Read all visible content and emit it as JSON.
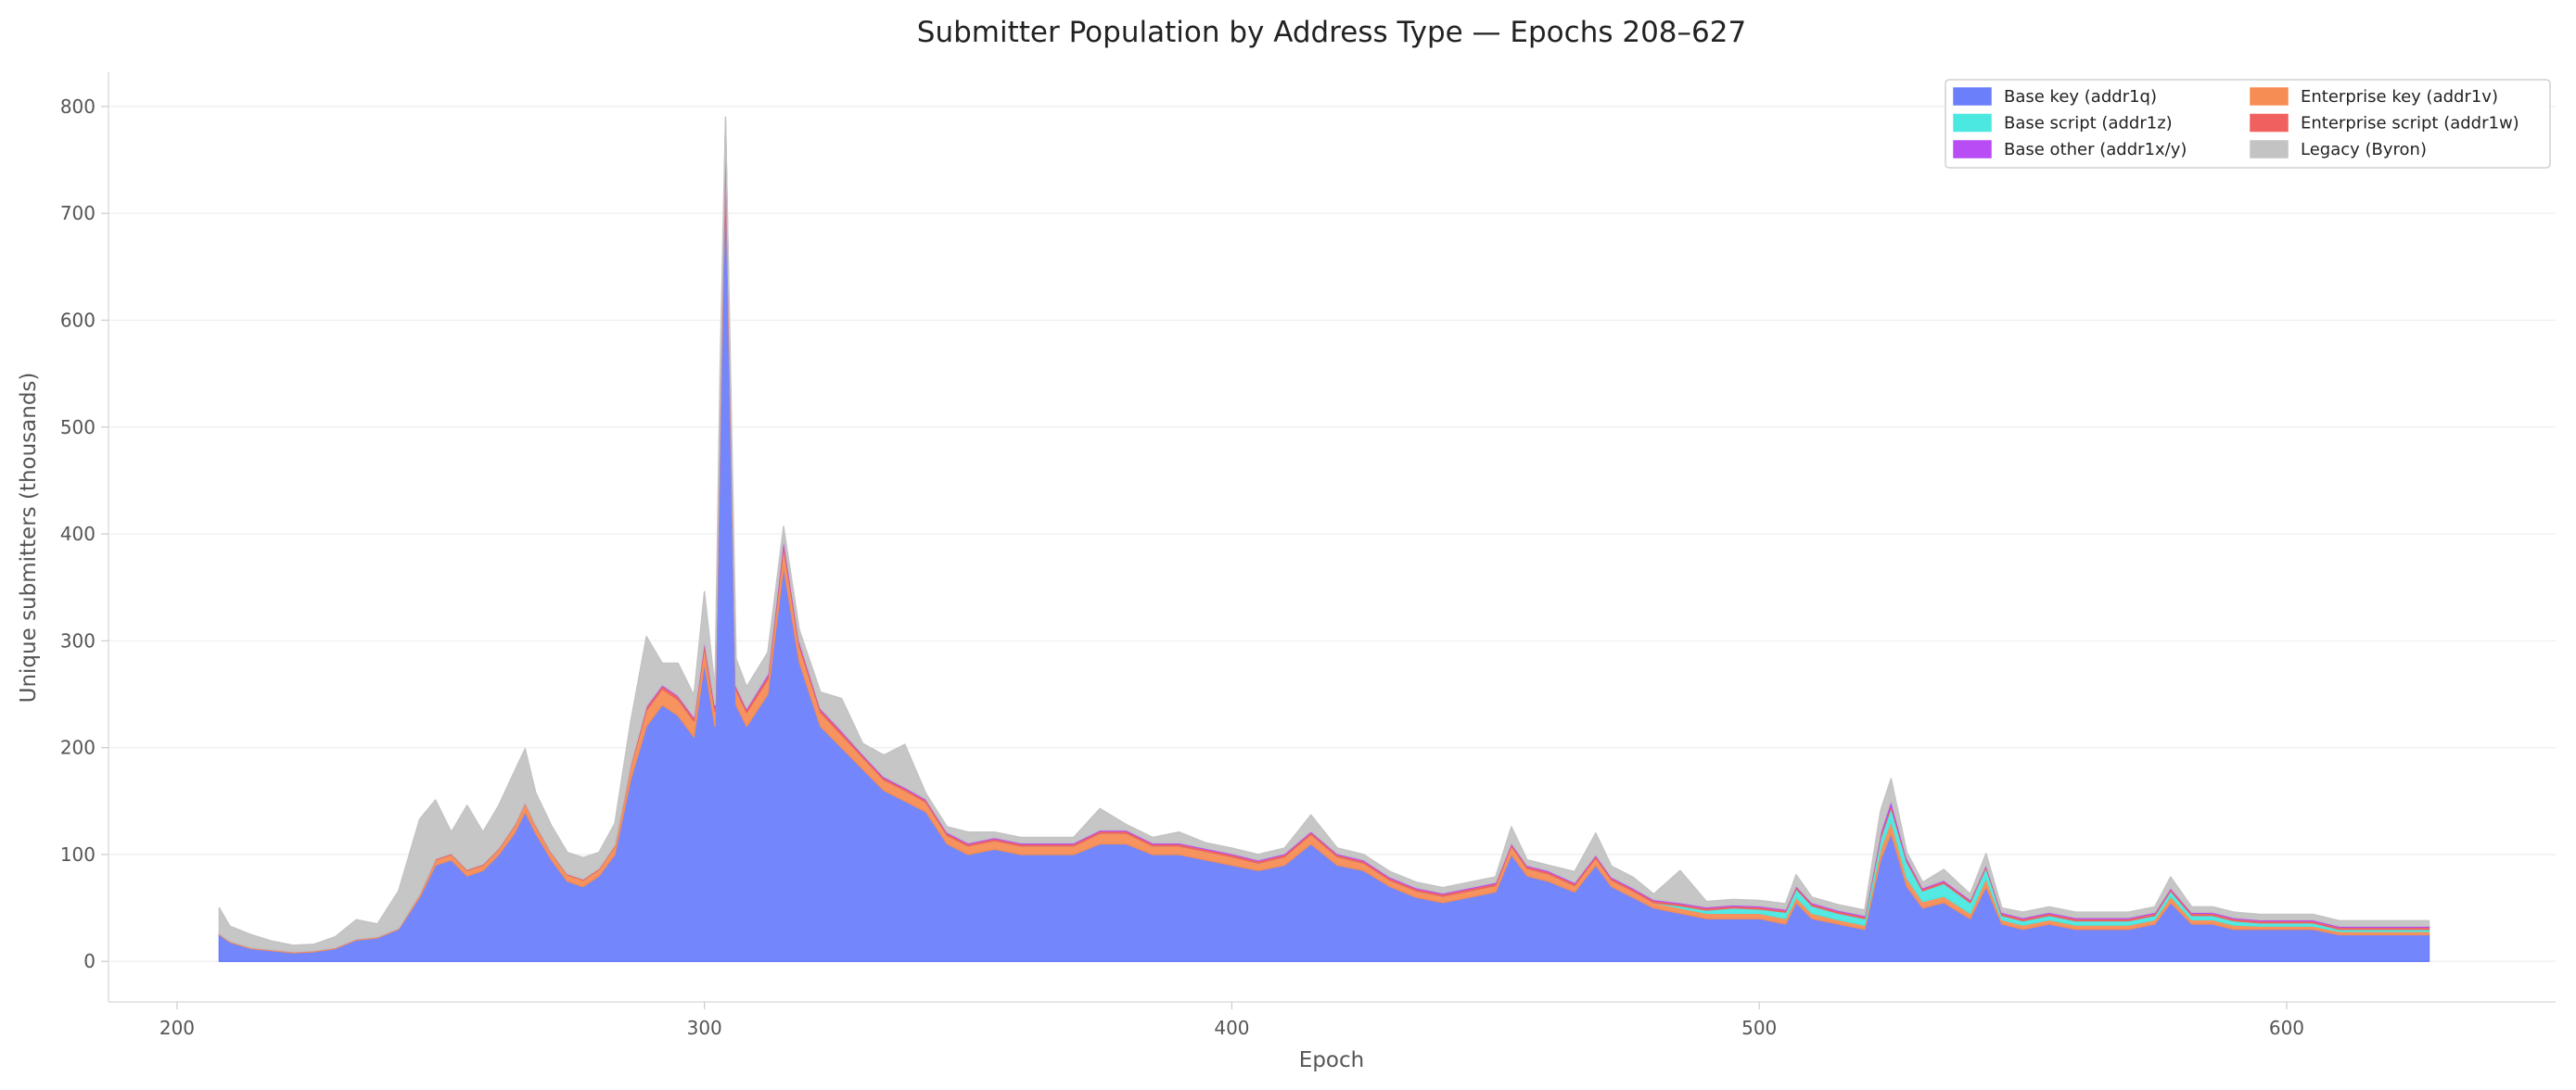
{
  "chart_data": {
    "type": "area",
    "stacked": true,
    "title": "Submitter Population by Address Type — Epochs 208–627",
    "xlabel": "Epoch",
    "ylabel": "Unique submitters (thousands)",
    "xlim": [
      187,
      651
    ],
    "ylim": [
      -38,
      832
    ],
    "xticks": [
      200,
      300,
      400,
      500,
      600
    ],
    "yticks": [
      0,
      100,
      200,
      300,
      400,
      500,
      600,
      700,
      800
    ],
    "grid": "horizontal",
    "legend_position": "top-right",
    "legend_columns": 2,
    "x": [
      208,
      210,
      214,
      218,
      222,
      226,
      230,
      234,
      238,
      242,
      246,
      249,
      252,
      255,
      258,
      261,
      264,
      266,
      268,
      271,
      274,
      277,
      280,
      283,
      286,
      289,
      292,
      295,
      298,
      300,
      302,
      303,
      304,
      306,
      308,
      312,
      315,
      318,
      322,
      326,
      330,
      334,
      338,
      342,
      346,
      350,
      355,
      360,
      365,
      370,
      375,
      380,
      385,
      390,
      395,
      400,
      405,
      410,
      415,
      420,
      425,
      430,
      435,
      440,
      445,
      450,
      453,
      456,
      460,
      465,
      469,
      472,
      476,
      480,
      485,
      490,
      495,
      500,
      505,
      507,
      510,
      515,
      520,
      523,
      525,
      528,
      531,
      535,
      540,
      543,
      546,
      550,
      555,
      560,
      565,
      570,
      575,
      578,
      582,
      586,
      590,
      595,
      600,
      605,
      610,
      615,
      620,
      624,
      627
    ],
    "series": [
      {
        "name": "Base key (addr1q)",
        "color": "#6b7ffb",
        "values": [
          25,
          18,
          12,
          10,
          8,
          9,
          12,
          20,
          22,
          30,
          60,
          90,
          95,
          80,
          85,
          100,
          120,
          140,
          120,
          95,
          75,
          70,
          80,
          100,
          170,
          220,
          240,
          230,
          210,
          280,
          220,
          500,
          750,
          240,
          220,
          250,
          370,
          280,
          220,
          200,
          180,
          160,
          150,
          140,
          110,
          100,
          105,
          100,
          100,
          100,
          110,
          110,
          100,
          100,
          95,
          90,
          85,
          90,
          110,
          90,
          85,
          70,
          60,
          55,
          60,
          65,
          100,
          80,
          75,
          65,
          90,
          70,
          60,
          50,
          45,
          40,
          40,
          40,
          35,
          55,
          40,
          35,
          30,
          95,
          120,
          70,
          50,
          55,
          40,
          70,
          35,
          30,
          35,
          30,
          30,
          30,
          35,
          55,
          35,
          35,
          30,
          30,
          30,
          30,
          25,
          25,
          25,
          25,
          25
        ]
      },
      {
        "name": "Enterprise key (addr1v)",
        "color": "#f58d55",
        "values": [
          1,
          1,
          1,
          1,
          1,
          1,
          1,
          1,
          1,
          1,
          3,
          5,
          5,
          5,
          5,
          5,
          7,
          8,
          7,
          6,
          6,
          6,
          6,
          8,
          12,
          15,
          15,
          15,
          15,
          15,
          14,
          20,
          20,
          14,
          13,
          14,
          18,
          15,
          13,
          12,
          11,
          10,
          10,
          9,
          8,
          8,
          8,
          8,
          8,
          8,
          10,
          10,
          8,
          8,
          8,
          8,
          7,
          8,
          9,
          8,
          7,
          6,
          6,
          6,
          6,
          6,
          8,
          7,
          7,
          6,
          7,
          6,
          6,
          5,
          5,
          5,
          5,
          5,
          5,
          5,
          5,
          4,
          4,
          10,
          12,
          8,
          6,
          6,
          5,
          8,
          4,
          4,
          4,
          4,
          4,
          4,
          4,
          6,
          4,
          4,
          4,
          3,
          3,
          3,
          3,
          3,
          3,
          3,
          3
        ]
      },
      {
        "name": "Base script (addr1z)",
        "color": "#4be8e0",
        "values": [
          0,
          0,
          0,
          0,
          0,
          0,
          0,
          0,
          0,
          0,
          0,
          0,
          0,
          0,
          0,
          0,
          0,
          0,
          0,
          0,
          0,
          0,
          0,
          0,
          0,
          0,
          0,
          0,
          0,
          0,
          0,
          0,
          0,
          0,
          0,
          0,
          0,
          0,
          0,
          0,
          0,
          0,
          0,
          0,
          0,
          0,
          0,
          0,
          0,
          0,
          0,
          0,
          0,
          0,
          0,
          0,
          0,
          0,
          0,
          0,
          0,
          0,
          0,
          0,
          0,
          0,
          0,
          0,
          0,
          0,
          0,
          0,
          0,
          0,
          2,
          3,
          5,
          4,
          6,
          8,
          7,
          6,
          6,
          10,
          12,
          15,
          10,
          12,
          10,
          10,
          4,
          4,
          4,
          4,
          4,
          4,
          4,
          5,
          4,
          4,
          4,
          3,
          3,
          3,
          2,
          2,
          2,
          2,
          2
        ]
      },
      {
        "name": "Enterprise script (addr1w)",
        "color": "#f0605e",
        "values": [
          0,
          0,
          0,
          0,
          0,
          0,
          0,
          0,
          0,
          0,
          0,
          1,
          1,
          1,
          1,
          1,
          1,
          1,
          1,
          1,
          1,
          1,
          1,
          1,
          2,
          3,
          3,
          3,
          3,
          4,
          4,
          8,
          10,
          3,
          3,
          3,
          5,
          3,
          3,
          3,
          2,
          2,
          2,
          2,
          2,
          2,
          2,
          2,
          2,
          2,
          2,
          2,
          2,
          2,
          2,
          2,
          2,
          2,
          2,
          2,
          2,
          2,
          2,
          2,
          2,
          2,
          2,
          2,
          2,
          2,
          2,
          2,
          2,
          2,
          2,
          2,
          2,
          2,
          2,
          2,
          2,
          2,
          2,
          3,
          3,
          2,
          2,
          2,
          2,
          2,
          2,
          2,
          2,
          2,
          2,
          2,
          2,
          2,
          2,
          2,
          2,
          2,
          2,
          2,
          2,
          2,
          2,
          2,
          2
        ]
      },
      {
        "name": "Base other (addr1x/y)",
        "color": "#b84cf5",
        "values": [
          0,
          0,
          0,
          0,
          0,
          0,
          0,
          0,
          0,
          0,
          0,
          0,
          0,
          0,
          0,
          0,
          0,
          0,
          0,
          0,
          0,
          0,
          0,
          0,
          0,
          1,
          1,
          1,
          1,
          2,
          2,
          4,
          5,
          1,
          1,
          2,
          4,
          2,
          1,
          1,
          1,
          1,
          1,
          1,
          1,
          1,
          1,
          1,
          1,
          1,
          1,
          1,
          1,
          1,
          1,
          1,
          1,
          1,
          1,
          1,
          1,
          1,
          1,
          1,
          1,
          1,
          1,
          1,
          1,
          1,
          1,
          1,
          1,
          1,
          1,
          1,
          1,
          1,
          1,
          1,
          1,
          1,
          1,
          3,
          4,
          2,
          1,
          1,
          1,
          1,
          1,
          1,
          1,
          1,
          1,
          1,
          1,
          1,
          1,
          1,
          1,
          1,
          1,
          1,
          1,
          1,
          1,
          1,
          1
        ]
      },
      {
        "name": "Legacy (Byron)",
        "color": "#c3c3c3",
        "values": [
          24,
          14,
          12,
          8,
          6,
          6,
          10,
          18,
          12,
          35,
          70,
          55,
          20,
          60,
          30,
          40,
          50,
          50,
          30,
          25,
          20,
          20,
          15,
          20,
          40,
          65,
          20,
          30,
          20,
          45,
          15,
          30,
          5,
          25,
          20,
          20,
          10,
          10,
          15,
          30,
          10,
          20,
          40,
          5,
          5,
          10,
          5,
          5,
          5,
          5,
          20,
          5,
          5,
          10,
          5,
          5,
          5,
          5,
          15,
          5,
          5,
          5,
          5,
          5,
          5,
          5,
          15,
          5,
          5,
          10,
          20,
          10,
          10,
          5,
          30,
          5,
          5,
          5,
          5,
          10,
          5,
          5,
          5,
          20,
          20,
          5,
          5,
          10,
          5,
          10,
          4,
          5,
          5,
          5,
          5,
          5,
          5,
          10,
          5,
          5,
          5,
          5,
          5,
          5,
          5,
          5,
          5,
          5,
          5
        ]
      }
    ]
  }
}
